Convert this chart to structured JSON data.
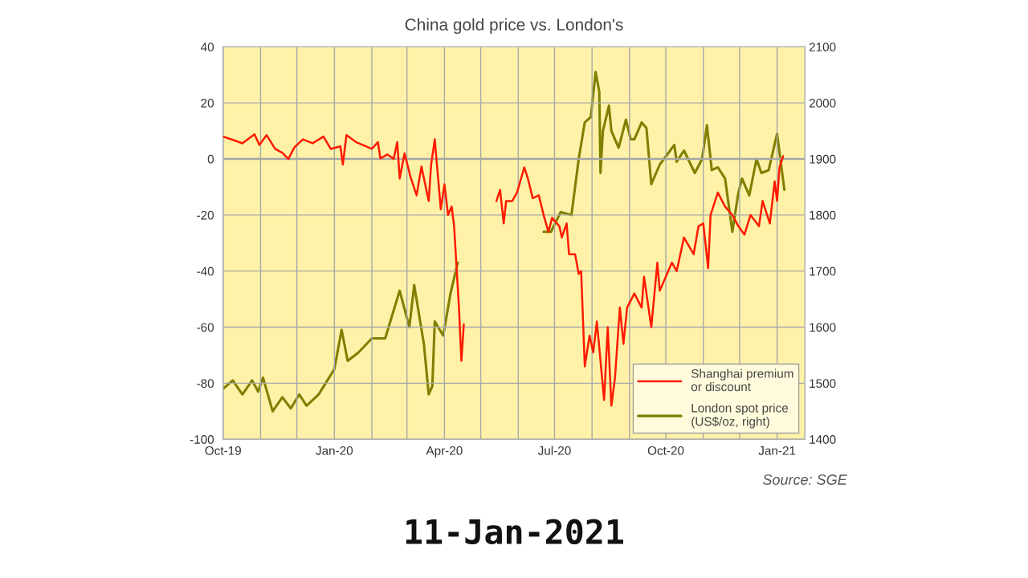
{
  "chart_data": {
    "type": "line",
    "title": "China gold price vs. London's",
    "xlim": [
      "2019-10-01",
      "2021-01-24"
    ],
    "xticks": [
      {
        "value": "2019-10-01",
        "label": "Oct-19"
      },
      {
        "value": "2019-11-01",
        "label": null
      },
      {
        "value": "2019-12-01",
        "label": null
      },
      {
        "value": "2020-01-01",
        "label": "Jan-20"
      },
      {
        "value": "2020-02-01",
        "label": null
      },
      {
        "value": "2020-03-01",
        "label": null
      },
      {
        "value": "2020-04-01",
        "label": "Apr-20"
      },
      {
        "value": "2020-05-01",
        "label": null
      },
      {
        "value": "2020-06-01",
        "label": null
      },
      {
        "value": "2020-07-01",
        "label": "Jul-20"
      },
      {
        "value": "2020-08-01",
        "label": null
      },
      {
        "value": "2020-09-01",
        "label": null
      },
      {
        "value": "2020-10-01",
        "label": "Oct-20"
      },
      {
        "value": "2020-11-01",
        "label": null
      },
      {
        "value": "2020-12-01",
        "label": null
      },
      {
        "value": "2021-01-01",
        "label": "Jan-21"
      }
    ],
    "ylim": [
      -100,
      40
    ],
    "yticks": [
      -100,
      -80,
      -60,
      -40,
      -20,
      0,
      20,
      40
    ],
    "y2lim": [
      1400,
      2100
    ],
    "y2ticks": [
      1400,
      1500,
      1600,
      1700,
      1800,
      1900,
      2000,
      2100
    ],
    "grid": true,
    "legend": "bottom right",
    "ref_lines": [
      {
        "axis": "y",
        "value": 0,
        "color": "#a6a6a6"
      }
    ],
    "annotations": [
      "Source: SGE",
      "11-Jan-2021"
    ],
    "series": [
      {
        "name": "Shanghai premium\nor discount",
        "color": "#ff1a00",
        "x": [
          "2019-10-01",
          "2019-10-11",
          "2019-10-17",
          "2019-10-27",
          "2019-10-31",
          "2019-11-06",
          "2019-11-13",
          "2019-11-19",
          "2019-11-24",
          "2019-11-29",
          "2019-12-06",
          "2019-12-14",
          "2019-12-23",
          "2019-12-29",
          "2020-01-06",
          "2020-01-08",
          "2020-01-11",
          "2020-01-19",
          "2020-02-01",
          "2020-02-06",
          "2020-02-08",
          "2020-02-14",
          "2020-02-19",
          "2020-02-22",
          "2020-02-24",
          "2020-02-28",
          "2020-03-04",
          "2020-03-09",
          "2020-03-13",
          "2020-03-19",
          "2020-03-21",
          "2020-03-24",
          "2020-03-29",
          "2020-04-01",
          "2020-04-04",
          "2020-04-07",
          "2020-04-09",
          "2020-04-13",
          "2020-04-15",
          "2020-04-17",
          "2020-04-30",
          "2020-05-14",
          "2020-05-17",
          "2020-05-20",
          "2020-05-22",
          "2020-05-27",
          "2020-05-31",
          "2020-06-06",
          "2020-06-09",
          "2020-06-13",
          "2020-06-18",
          "2020-06-22",
          "2020-06-26",
          "2020-06-29",
          "2020-07-05",
          "2020-07-07",
          "2020-07-11",
          "2020-07-13",
          "2020-07-18",
          "2020-07-21",
          "2020-07-23",
          "2020-07-26",
          "2020-07-30",
          "2020-08-02",
          "2020-08-05",
          "2020-08-11",
          "2020-08-14",
          "2020-08-17",
          "2020-08-20",
          "2020-08-24",
          "2020-08-27",
          "2020-08-30",
          "2020-09-05",
          "2020-09-11",
          "2020-09-13",
          "2020-09-19",
          "2020-09-24",
          "2020-09-26",
          "2020-10-06",
          "2020-10-10",
          "2020-10-16",
          "2020-10-24",
          "2020-10-28",
          "2020-11-01",
          "2020-11-05",
          "2020-11-07",
          "2020-11-13",
          "2020-11-19",
          "2020-11-25",
          "2020-11-30",
          "2020-12-05",
          "2020-12-10",
          "2020-12-17",
          "2020-12-20",
          "2020-12-26",
          "2020-12-30",
          "2021-01-01",
          "2021-01-03",
          "2021-01-06"
        ],
        "values": [
          8,
          6.5,
          5.6,
          8.8,
          5,
          8.5,
          3.6,
          2.2,
          0,
          4.2,
          7,
          5.6,
          8,
          3.6,
          4.5,
          -2,
          8.5,
          6,
          3.6,
          6,
          0.2,
          1.6,
          0,
          6,
          -7,
          2,
          -6.5,
          -13,
          -2.7,
          -15,
          -2,
          7,
          -18,
          -9,
          -20,
          -17,
          -24,
          -53,
          -72,
          -59,
          null,
          -15,
          -11,
          -23,
          -15,
          -15,
          -12,
          -3,
          -7,
          -14,
          -13,
          -20,
          -26,
          -21,
          -24,
          -28,
          -23,
          -34,
          -34,
          -41,
          -40,
          -74,
          -63,
          -69,
          -58,
          -86,
          -60,
          -88,
          -78,
          -53,
          -66,
          -53,
          -48,
          -53,
          -42,
          -60,
          -37,
          -47,
          -37,
          -40,
          -28,
          -34,
          -24,
          -23,
          -39,
          -20,
          -12,
          -17,
          -20,
          -24,
          -27,
          -20,
          -24,
          -15,
          -23,
          -8,
          -15,
          -3,
          1
        ]
      },
      {
        "name": "London spot price\n(US$/oz, right)",
        "color": "#7f7f00",
        "axis": "y2",
        "x": [
          "2019-10-01",
          "2019-10-09",
          "2019-10-17",
          "2019-10-25",
          "2019-10-30",
          "2019-11-03",
          "2019-11-11",
          "2019-11-19",
          "2019-11-26",
          "2019-12-03",
          "2019-12-09",
          "2019-12-19",
          "2020-01-01",
          "2020-01-07",
          "2020-01-12",
          "2020-01-21",
          "2020-02-01",
          "2020-02-12",
          "2020-02-24",
          "2020-03-03",
          "2020-03-07",
          "2020-03-15",
          "2020-03-19",
          "2020-03-22",
          "2020-03-24",
          "2020-03-31",
          "2020-04-06",
          "2020-04-12",
          "2020-05-15",
          "2020-06-22",
          "2020-06-28",
          "2020-07-06",
          "2020-07-15",
          "2020-07-21",
          "2020-07-26",
          "2020-07-31",
          "2020-08-04",
          "2020-08-07",
          "2020-08-08",
          "2020-08-10",
          "2020-08-15",
          "2020-08-17",
          "2020-08-23",
          "2020-08-29",
          "2020-09-02",
          "2020-09-05",
          "2020-09-11",
          "2020-09-15",
          "2020-09-19",
          "2020-09-26",
          "2020-10-08",
          "2020-10-10",
          "2020-10-16",
          "2020-10-25",
          "2020-10-31",
          "2020-11-04",
          "2020-11-08",
          "2020-11-13",
          "2020-11-19",
          "2020-11-25",
          "2020-11-30",
          "2020-12-03",
          "2020-12-09",
          "2020-12-15",
          "2020-12-19",
          "2020-12-25",
          "2021-01-01",
          "2021-01-07"
        ],
        "values": [
          1490,
          1505,
          1480,
          1505,
          1485,
          1510,
          1450,
          1475,
          1455,
          1480,
          1460,
          1480,
          1525,
          1595,
          1540,
          1555,
          1580,
          1580,
          1665,
          1600,
          1675,
          1570,
          1480,
          1495,
          1610,
          1585,
          1660,
          1715,
          null,
          1770,
          1770,
          1805,
          1800,
          1900,
          1965,
          1975,
          2055,
          2020,
          1875,
          1950,
          1995,
          1950,
          1920,
          1970,
          1935,
          1935,
          1965,
          1955,
          1855,
          1890,
          1925,
          1895,
          1915,
          1875,
          1900,
          1960,
          1880,
          1885,
          1865,
          1770,
          1840,
          1865,
          1835,
          1900,
          1875,
          1880,
          1945,
          1845
        ]
      }
    ]
  }
}
